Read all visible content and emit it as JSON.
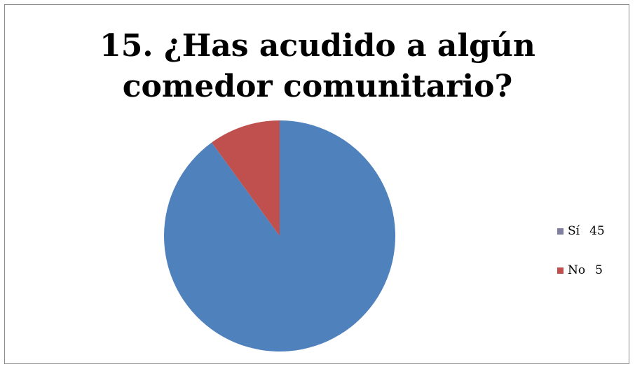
{
  "chart_data": {
    "type": "pie",
    "title_lines": [
      "15. ¿Has acudido a algún",
      "comedor comunitario?"
    ],
    "categories": [
      "Sí",
      "No"
    ],
    "values": [
      45,
      5
    ],
    "colors": [
      "#4f81bd",
      "#c0504d"
    ],
    "legend_swatch_colors": [
      "#7f7f9f",
      "#c0504d"
    ],
    "legend_position": "right",
    "start_angle_deg": 0,
    "direction": "clockwise-from-top, No slice drawn counter-clockwise ending at top"
  }
}
